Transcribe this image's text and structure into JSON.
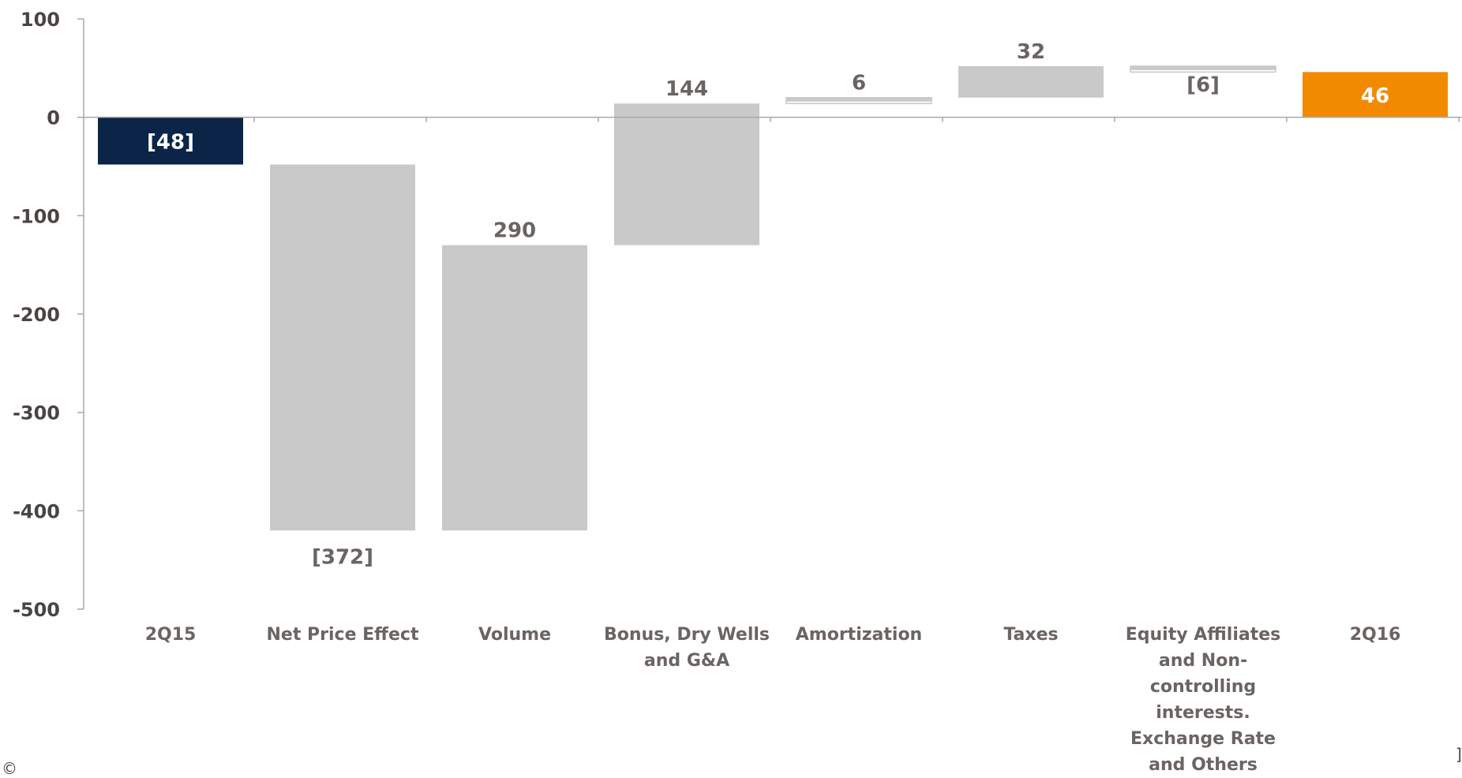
{
  "chart_data": {
    "type": "bar",
    "subtype": "waterfall",
    "categories": [
      "2Q15",
      "Net Price Effect",
      "Volume",
      "Bonus, Dry Wells and G&A",
      "Amortization",
      "Taxes",
      "Equity Affiliates and  Non-controlling interests. Exchange Rate and Others",
      "2Q16"
    ],
    "category_lines": [
      [
        "2Q15"
      ],
      [
        "Net Price Effect"
      ],
      [
        "Volume"
      ],
      [
        "Bonus, Dry Wells",
        "and G&A"
      ],
      [
        "Amortization"
      ],
      [
        "Taxes"
      ],
      [
        "Equity Affiliates",
        "and  Non-",
        "controlling",
        "interests.",
        "Exchange Rate",
        "and Others"
      ],
      [
        "2Q16"
      ]
    ],
    "bars": [
      {
        "start": 0,
        "end": -48,
        "kind": "total"
      },
      {
        "start": -48,
        "end": -420,
        "kind": "change"
      },
      {
        "start": -420,
        "end": -130,
        "kind": "change"
      },
      {
        "start": -130,
        "end": 14,
        "kind": "change"
      },
      {
        "start": 14,
        "end": 20,
        "kind": "change"
      },
      {
        "start": 20,
        "end": 52,
        "kind": "change"
      },
      {
        "start": 52,
        "end": 46,
        "kind": "change"
      },
      {
        "start": 0,
        "end": 46,
        "kind": "total"
      }
    ],
    "values": [
      -48,
      -372,
      290,
      144,
      6,
      32,
      -6,
      46
    ],
    "data_labels": [
      "[48]",
      "[372]",
      "290",
      "144",
      "6",
      "32",
      "[6]",
      "46"
    ],
    "ylim": [
      -500,
      100
    ],
    "yticks": [
      "100",
      "0",
      "-100",
      "-200",
      "-300",
      "-400",
      "-500"
    ],
    "ytick_values": [
      100,
      0,
      -100,
      -200,
      -300,
      -400,
      -500
    ],
    "colors": {
      "start_total": "#0b2447",
      "end_total": "#f28a00",
      "increase": "#c9c9c9",
      "decrease": "#c9c9c9",
      "decrease_small_fill": "#ffffff",
      "axis": "#a8a8a8",
      "label_on_dark": "#ffffff",
      "label": "#6a6462"
    },
    "title": "",
    "xlabel": "",
    "ylabel": ""
  },
  "corner_marks": {
    "left": "©",
    "right": "]"
  }
}
